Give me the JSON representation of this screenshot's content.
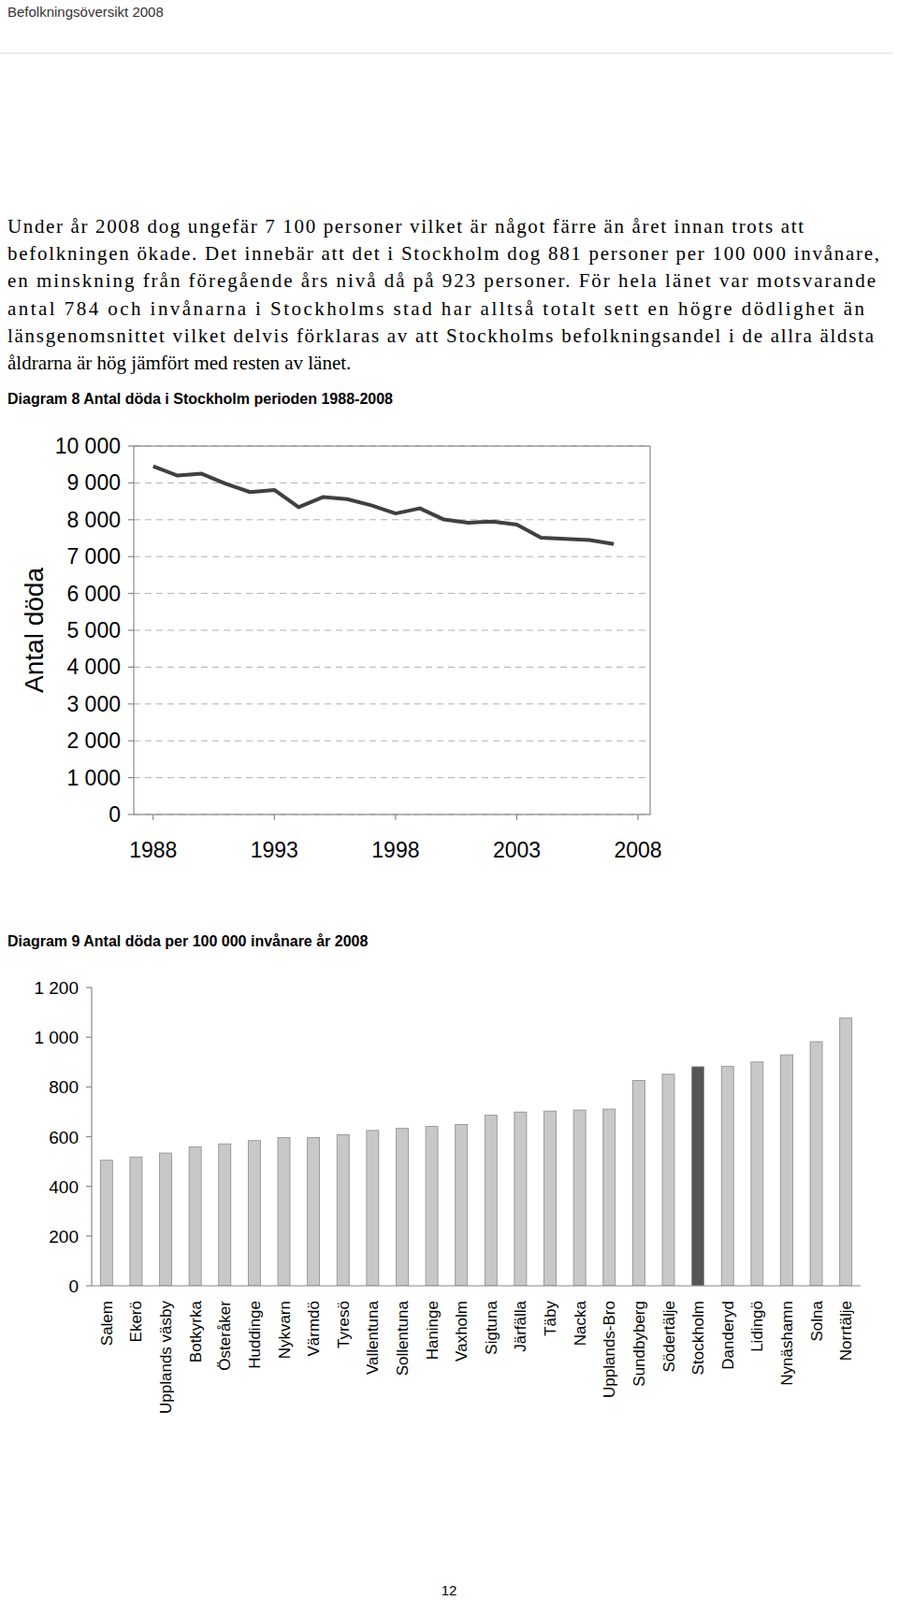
{
  "header": {
    "title": "Befolkningsöversikt 2008"
  },
  "paragraph": {
    "lines": [
      "Under år 2008 dog ungefär 7 100 personer vilket är något färre än året innan trots att",
      "befolkningen ökade. Det innebär att det i Stockholm dog 881 personer per 100 000 invånare,",
      "en minskning från föregående års nivå då på 923 personer. För hela länet var motsvarande",
      "antal 784 och invånarna i Stockholms stad har alltså totalt sett en högre dödlighet än",
      "länsgenomsnittet vilket delvis förklaras av att Stockholms befolkningsandel i de allra äldsta",
      "åldrarna är hög jämfört med resten av länet."
    ]
  },
  "chart_data": [
    {
      "type": "line",
      "title": "Diagram 8  Antal döda i Stockholm perioden 1988-2008",
      "y_label": "Antal döda",
      "x": [
        1988,
        1989,
        1990,
        1991,
        1992,
        1993,
        1994,
        1995,
        1996,
        1997,
        1998,
        1999,
        2000,
        2001,
        2002,
        2003,
        2004,
        2005,
        2006,
        2007
      ],
      "values": [
        9450,
        9200,
        9250,
        8975,
        8750,
        8810,
        8340,
        8615,
        8560,
        8390,
        8170,
        8310,
        8005,
        7920,
        7950,
        7870,
        7510,
        7480,
        7450,
        7340
      ],
      "color": "#404040",
      "xlim": [
        1987.2,
        2008.5
      ],
      "xticks": [
        1988,
        1993,
        1998,
        2003,
        2008
      ],
      "ylim": [
        0,
        10000
      ],
      "yticks": [
        0,
        {
          "value": 1000,
          "label": "1 000"
        },
        {
          "value": 2000,
          "label": "2 000"
        },
        {
          "value": 3000,
          "label": "3 000"
        },
        {
          "value": 4000,
          "label": "4 000"
        },
        {
          "value": 5000,
          "label": "5 000"
        },
        {
          "value": 6000,
          "label": "6 000"
        },
        {
          "value": 7000,
          "label": "7 000"
        },
        {
          "value": 8000,
          "label": "8 000"
        },
        {
          "value": 9000,
          "label": "9 000"
        },
        {
          "value": 10000,
          "label": "10 000"
        }
      ],
      "grid": true
    },
    {
      "type": "bar",
      "title": "Diagram 9  Antal döda per 100 000 invånare år 2008",
      "categories": [
        "Salem",
        "Ekerö",
        "Upplands väsby",
        "Botkyrka",
        "Österåker",
        "Huddinge",
        "Nykvarn",
        "Värmdö",
        "Tyresö",
        "Vallentuna",
        "Sollentuna",
        "Haninge",
        "Vaxholm",
        "Sigtuna",
        "Järfälla",
        "Täby",
        "Nacka",
        "Upplands-Bro",
        "Sundbyberg",
        "Södertälje",
        "Stockholm",
        "Danderyd",
        "Lidingö",
        "Nynäshamn",
        "Solna",
        "Norrtälje"
      ],
      "values": [
        505,
        518,
        534,
        559,
        571,
        584,
        596,
        596,
        608,
        625,
        633,
        641,
        649,
        686,
        699,
        703,
        707,
        711,
        826,
        851,
        881,
        883,
        900,
        929,
        982,
        1077
      ],
      "colors": [
        "#c8c8c8",
        "#c8c8c8",
        "#c8c8c8",
        "#c8c8c8",
        "#c8c8c8",
        "#c8c8c8",
        "#c8c8c8",
        "#c8c8c8",
        "#c8c8c8",
        "#c8c8c8",
        "#c8c8c8",
        "#c8c8c8",
        "#c8c8c8",
        "#c8c8c8",
        "#c8c8c8",
        "#c8c8c8",
        "#c8c8c8",
        "#c8c8c8",
        "#c8c8c8",
        "#c8c8c8",
        "#555555",
        "#c8c8c8",
        "#c8c8c8",
        "#c8c8c8",
        "#c8c8c8",
        "#c8c8c8"
      ],
      "ylim": [
        0,
        1200
      ],
      "yticks": [
        0,
        200,
        400,
        600,
        800,
        {
          "value": 1000,
          "label": "1 000"
        },
        {
          "value": 1200,
          "label": "1 200"
        }
      ],
      "grid": false
    }
  ],
  "page_number": "12"
}
